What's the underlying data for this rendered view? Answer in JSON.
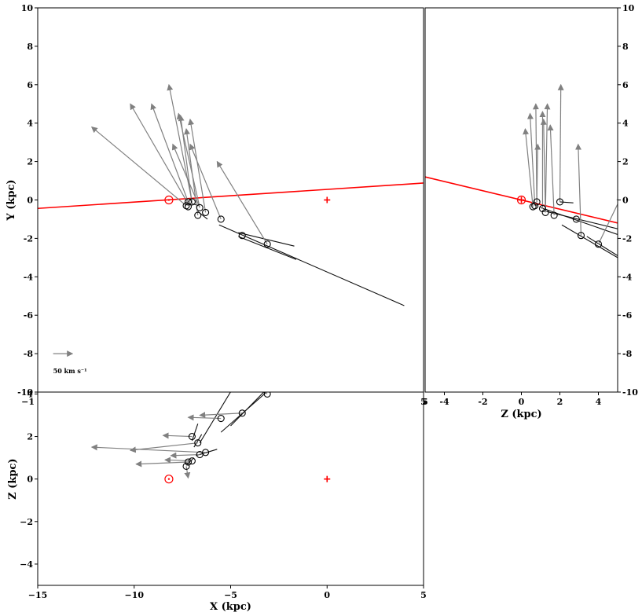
{
  "chart_data": [
    {
      "panel": "X-Y",
      "type": "scatter",
      "xlabel": "",
      "ylabel": "Y (kpc)",
      "xlim": [
        -15,
        5
      ],
      "ylim": [
        -10,
        10
      ],
      "xticks": [],
      "yticks": [
        "10",
        "8",
        "6",
        "4",
        "2",
        "0",
        "-2",
        "-4",
        "-6",
        "-8",
        "-10"
      ],
      "xtick_partial_left": "−1",
      "xtick_partial_right": "5",
      "scale_label": "50 km s⁻¹",
      "colors": {
        "line": "#ff0000",
        "arrow": "#808080",
        "orbit": "#000000",
        "marker": "#000000",
        "sun": "#ff0000",
        "center": "#ff0000"
      },
      "sun": [
        -8.2,
        0
      ],
      "center": [
        0,
        0
      ],
      "red_line": [
        [
          -15,
          -0.44
        ],
        [
          5,
          0.88
        ]
      ],
      "stars": [
        {
          "x": -7.3,
          "y": -0.3
        },
        {
          "x": -7.2,
          "y": -0.35
        },
        {
          "x": -7.2,
          "y": -0.1
        },
        {
          "x": -7.0,
          "y": -0.1
        },
        {
          "x": -6.7,
          "y": -0.8
        },
        {
          "x": -6.6,
          "y": -0.4
        },
        {
          "x": -6.3,
          "y": -0.65
        },
        {
          "x": -5.5,
          "y": -1.0
        },
        {
          "x": -4.4,
          "y": -1.85
        },
        {
          "x": -3.1,
          "y": -2.3
        }
      ],
      "velocity_arrows": [
        [
          -7.3,
          -0.3,
          -12.2,
          3.8
        ],
        [
          -7.2,
          -0.2,
          -10.2,
          5.0
        ],
        [
          -7.2,
          -0.1,
          -9.1,
          5.0
        ],
        [
          -7.0,
          -0.1,
          -8.2,
          6.0
        ],
        [
          -6.6,
          -0.4,
          -7.7,
          4.5
        ],
        [
          -6.7,
          -0.8,
          -7.3,
          3.7
        ],
        [
          -7.0,
          -0.2,
          -7.6,
          4.4
        ],
        [
          -6.3,
          -0.65,
          -7.1,
          4.2
        ],
        [
          -6.6,
          -0.4,
          -8.0,
          2.9
        ],
        [
          -5.5,
          -1.0,
          -7.1,
          2.9
        ],
        [
          -3.1,
          -2.3,
          -5.7,
          2.0
        ]
      ],
      "orbit_segments": [
        [
          -5.6,
          -1.3,
          4.0,
          -5.5
        ],
        [
          -4.6,
          -1.7,
          -1.7,
          -2.4
        ],
        [
          -4.6,
          -1.9,
          -1.6,
          -3.1
        ],
        [
          -6.7,
          -0.6,
          -6.2,
          -1.0
        ],
        [
          -7.0,
          -0.2,
          -6.6,
          -0.3
        ]
      ],
      "scale_arrow": [
        -14.2,
        -8.0,
        -13.2,
        -8.0
      ]
    },
    {
      "panel": "Z-Y",
      "type": "scatter",
      "xlabel": "Z (kpc)",
      "ylabel": "",
      "xlim": [
        -5,
        5
      ],
      "ylim": [
        -10,
        10
      ],
      "xticks": [
        "-4",
        "-2",
        "0",
        "2",
        "4"
      ],
      "xtick_partial_left": "5",
      "yticks": [
        "10",
        "8",
        "6",
        "4",
        "2",
        "0",
        "-2",
        "-4",
        "-6",
        "-8",
        "-10"
      ],
      "sun": [
        0,
        0
      ],
      "center": [
        0,
        0
      ],
      "red_line": [
        [
          -5,
          1.2
        ],
        [
          5,
          -1.2
        ]
      ],
      "stars": [
        {
          "x": 0.6,
          "y": -0.35
        },
        {
          "x": 0.7,
          "y": -0.3
        },
        {
          "x": 0.8,
          "y": -0.1
        },
        {
          "x": 1.1,
          "y": -0.45
        },
        {
          "x": 1.25,
          "y": -0.65
        },
        {
          "x": 1.7,
          "y": -0.8
        },
        {
          "x": 2.0,
          "y": -0.1
        },
        {
          "x": 2.85,
          "y": -1.0
        },
        {
          "x": 3.1,
          "y": -1.85
        },
        {
          "x": 4.0,
          "y": -2.3
        }
      ],
      "velocity_arrows": [
        [
          0.6,
          -0.35,
          0.2,
          3.7
        ],
        [
          0.7,
          -0.3,
          0.45,
          4.5
        ],
        [
          0.8,
          -0.1,
          0.75,
          5.0
        ],
        [
          0.8,
          -0.1,
          0.85,
          2.9
        ],
        [
          1.1,
          -0.45,
          1.1,
          4.6
        ],
        [
          1.25,
          -0.65,
          1.35,
          5.0
        ],
        [
          1.25,
          -0.65,
          1.15,
          4.2
        ],
        [
          1.7,
          -0.8,
          1.5,
          3.9
        ],
        [
          2.0,
          -0.1,
          2.05,
          6.0
        ],
        [
          3.1,
          -1.85,
          2.95,
          2.9
        ],
        [
          4.0,
          -2.3,
          5.2,
          0.2
        ]
      ],
      "orbit_segments": [
        [
          2.1,
          -1.3,
          5.0,
          -3.0
        ],
        [
          3.4,
          -1.9,
          5.0,
          -2.9
        ],
        [
          1.0,
          -0.4,
          5.0,
          -1.8
        ],
        [
          2.0,
          -0.1,
          2.7,
          -0.15
        ],
        [
          1.3,
          -0.6,
          5.0,
          -1.5
        ]
      ]
    },
    {
      "panel": "X-Z",
      "type": "scatter",
      "xlabel": "X (kpc)",
      "ylabel": "Z (kpc)",
      "xlim": [
        -15,
        5
      ],
      "ylim": [
        -5,
        5
      ],
      "xticks": [
        "−15",
        "−10",
        "−5",
        "0",
        "5"
      ],
      "yticks": [
        "4",
        "2",
        "0",
        "−2",
        "−4"
      ],
      "sun": [
        -8.2,
        0
      ],
      "center": [
        0,
        0
      ],
      "stars": [
        {
          "x": -7.3,
          "y": 0.6
        },
        {
          "x": -7.2,
          "y": 0.8
        },
        {
          "x": -7.0,
          "y": 0.85
        },
        {
          "x": -6.6,
          "y": 1.15
        },
        {
          "x": -6.3,
          "y": 1.25
        },
        {
          "x": -7.0,
          "y": 2.0
        },
        {
          "x": -6.7,
          "y": 1.7
        },
        {
          "x": -5.5,
          "y": 2.85
        },
        {
          "x": -4.4,
          "y": 3.1
        },
        {
          "x": -3.1,
          "y": 4.0
        }
      ],
      "velocity_arrows": [
        [
          -7.3,
          0.6,
          -7.2,
          0.05
        ],
        [
          -7.2,
          0.8,
          -9.9,
          0.7
        ],
        [
          -7.0,
          0.85,
          -8.4,
          0.9
        ],
        [
          -6.6,
          1.15,
          -8.1,
          1.1
        ],
        [
          -6.3,
          1.25,
          -12.2,
          1.5
        ],
        [
          -7.0,
          2.0,
          -8.5,
          2.05
        ],
        [
          -6.7,
          1.7,
          -10.2,
          1.35
        ],
        [
          -5.5,
          2.85,
          -7.2,
          2.9
        ],
        [
          -4.4,
          3.1,
          -6.6,
          3.0
        ],
        [
          -3.1,
          4.0,
          -4.8,
          5.2
        ]
      ],
      "orbit_segments": [
        [
          -5.5,
          2.2,
          -2.0,
          5.0
        ],
        [
          -5.0,
          2.5,
          -2.3,
          5.0
        ],
        [
          -7.3,
          0.65,
          -6.9,
          1.0
        ],
        [
          -6.8,
          1.1,
          -5.7,
          1.4
        ],
        [
          -6.9,
          1.5,
          -6.5,
          2.1
        ],
        [
          -7.0,
          1.8,
          -6.7,
          2.6
        ],
        [
          -6.6,
          1.7,
          -4.4,
          5.0
        ]
      ]
    }
  ]
}
